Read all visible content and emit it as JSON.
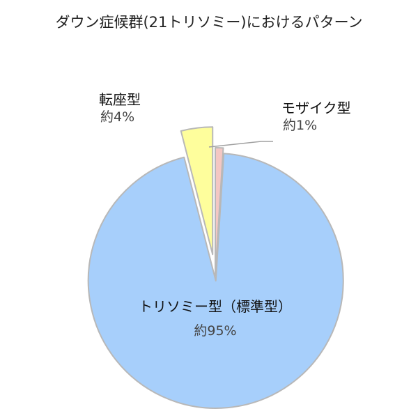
{
  "chart_data": {
    "type": "pie",
    "title": "ダウン症候群(21トリソミー)におけるパターン",
    "start_angle_deg": 0,
    "direction": "clockwise",
    "slices": [
      {
        "label": "モザイク型",
        "value": 1,
        "value_label": "約1%",
        "color": "#f4c7c3",
        "exploded": false,
        "leader_line": true
      },
      {
        "label": "トリソミー型（標準型）",
        "value": 95,
        "value_label": "約95%",
        "color": "#a7cffb",
        "exploded": true,
        "leader_line": false
      },
      {
        "label": "転座型",
        "value": 4,
        "value_label": "約4%",
        "color": "#fefe9c",
        "exploded": true,
        "leader_line": false
      }
    ]
  }
}
